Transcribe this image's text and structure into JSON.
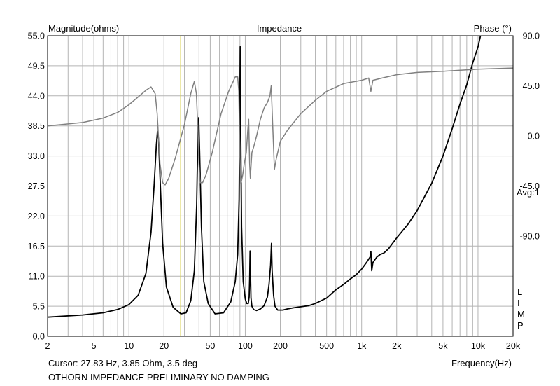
{
  "chart_data": {
    "type": "line",
    "title": "Impedance",
    "left_axis_label": "Magnitude(ohms)",
    "right_axis_label": "Phase (°)",
    "xlabel": "Frequency(Hz)",
    "x_scale": "log",
    "xlim": [
      2,
      20000
    ],
    "ylim_left": [
      0,
      55
    ],
    "ylim_right": [
      -180,
      90
    ],
    "grid": true,
    "x_ticks": [
      {
        "v": 2,
        "label": "2"
      },
      {
        "v": 5,
        "label": "5"
      },
      {
        "v": 10,
        "label": "10"
      },
      {
        "v": 20,
        "label": "20"
      },
      {
        "v": 50,
        "label": "50"
      },
      {
        "v": 100,
        "label": "100"
      },
      {
        "v": 200,
        "label": "200"
      },
      {
        "v": 500,
        "label": "500"
      },
      {
        "v": 1000,
        "label": "1k"
      },
      {
        "v": 2000,
        "label": "2k"
      },
      {
        "v": 5000,
        "label": "5k"
      },
      {
        "v": 10000,
        "label": "10k"
      },
      {
        "v": 20000,
        "label": "20k"
      }
    ],
    "y_left_ticks": [
      {
        "v": 0,
        "label": "0.0"
      },
      {
        "v": 5.5,
        "label": "5.5"
      },
      {
        "v": 11,
        "label": "11.0"
      },
      {
        "v": 16.5,
        "label": "16.5"
      },
      {
        "v": 22,
        "label": "22.0"
      },
      {
        "v": 27.5,
        "label": "27.5"
      },
      {
        "v": 33,
        "label": "33.0"
      },
      {
        "v": 38.5,
        "label": "38.5"
      },
      {
        "v": 44,
        "label": "44.0"
      },
      {
        "v": 49.5,
        "label": "49.5"
      },
      {
        "v": 55,
        "label": "55.0"
      }
    ],
    "y_right_ticks": [
      {
        "v": 90,
        "label": "90.0"
      },
      {
        "v": 45,
        "label": "45.0"
      },
      {
        "v": 0,
        "label": "0.0"
      },
      {
        "v": -45,
        "label": "-45.0"
      },
      {
        "v": -90,
        "label": "-90.0"
      }
    ],
    "avg_label": "Avg:1",
    "side_legend": [
      "L",
      "I",
      "M",
      "P"
    ],
    "cursor_x": 27.83,
    "cursor_color": "#d8d050",
    "series": [
      {
        "name": "M",
        "color": "#000000",
        "axis": "left",
        "x": [
          2,
          4,
          6,
          8,
          10,
          12,
          14,
          15.5,
          16.5,
          17.2,
          17.6,
          18.0,
          18.6,
          19.5,
          21,
          24,
          28,
          31,
          34,
          36.5,
          38.2,
          39.2,
          39.8,
          40.5,
          42,
          44,
          48,
          55,
          65,
          75,
          82,
          86,
          88.5,
          90,
          90.5,
          91.2,
          93,
          96,
          100,
          103,
          106,
          108,
          109,
          110,
          111,
          112,
          114,
          118,
          125,
          135,
          145,
          155,
          160,
          165,
          168,
          170,
          175,
          180,
          190,
          210,
          230,
          260,
          300,
          350,
          400,
          500,
          600,
          700,
          800,
          900,
          1000,
          1100,
          1180,
          1200,
          1220,
          1250,
          1350,
          1450,
          1550,
          1700,
          2000,
          2500,
          3000,
          4000,
          5000,
          6000,
          7000,
          8000,
          9000,
          10000,
          10500
        ],
        "values": [
          3.5,
          3.9,
          4.3,
          4.9,
          5.8,
          7.5,
          11.5,
          19,
          28,
          35,
          37.5,
          36,
          28,
          17,
          9,
          5.3,
          4.1,
          4.3,
          6.5,
          12,
          24,
          37,
          40,
          34,
          20,
          10,
          6,
          4.1,
          4.3,
          6.3,
          10,
          15,
          25,
          44,
          53,
          40,
          20,
          10,
          6.8,
          6.0,
          6.0,
          7.2,
          10.5,
          15.6,
          11,
          7,
          5.5,
          4.9,
          4.7,
          5.0,
          5.6,
          7.2,
          9.5,
          13,
          17,
          12,
          7.5,
          5.5,
          4.8,
          4.8,
          5.0,
          5.2,
          5.4,
          5.6,
          6.0,
          7.0,
          8.5,
          9.5,
          10.5,
          11.3,
          12.3,
          13.5,
          14.5,
          15.5,
          12,
          13.5,
          14.5,
          15,
          15.2,
          16,
          18,
          20.5,
          23,
          28,
          33,
          38,
          42.5,
          46,
          50,
          53,
          55
        ]
      },
      {
        "name": "P",
        "color": "#808080",
        "axis": "right",
        "x": [
          2,
          4,
          6,
          8,
          10,
          12,
          14,
          15.5,
          16.8,
          17.5,
          18.5,
          19.5,
          20.5,
          22,
          25,
          30,
          34,
          36.5,
          38,
          39,
          40,
          41,
          43,
          46,
          52,
          62,
          72,
          82,
          86,
          88,
          90,
          91.5,
          93,
          95,
          98,
          102,
          105,
          107,
          109,
          110.5,
          112,
          114,
          118,
          125,
          135,
          145,
          155,
          163,
          167,
          172,
          178,
          185,
          200,
          230,
          300,
          400,
          500,
          700,
          1000,
          1150,
          1200,
          1250,
          1500,
          2000,
          3000,
          5000,
          10000,
          20000
        ],
        "values": [
          9,
          12,
          16,
          21,
          28,
          35,
          41,
          44,
          38,
          20,
          -25,
          -42,
          -44,
          -38,
          -20,
          10,
          38,
          49,
          38,
          10,
          -25,
          -42,
          -42,
          -35,
          -15,
          20,
          40,
          53,
          53,
          40,
          -20,
          -43,
          -40,
          -35,
          -25,
          -15,
          5,
          15,
          -25,
          -38,
          -28,
          -15,
          -10,
          0,
          15,
          25,
          30,
          36,
          45,
          10,
          -30,
          -20,
          -5,
          5,
          20,
          32,
          40,
          47,
          50,
          52,
          40,
          50,
          52,
          55,
          57,
          58,
          60,
          61
        ]
      }
    ]
  },
  "footer": {
    "cursor": "Cursor: 27.83 Hz, 3.85 Ohm, 3.5 deg",
    "caption": "OTHORN IMPEDANCE PRELIMINARY NO DAMPING"
  }
}
